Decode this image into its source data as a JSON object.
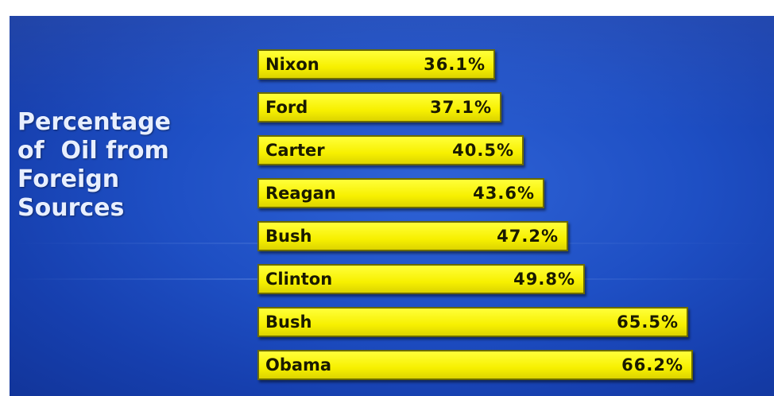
{
  "chart_data": {
    "type": "bar",
    "orientation": "horizontal",
    "title": [
      "Percentage",
      "of  Oil from",
      "Foreign",
      "Sources"
    ],
    "categories": [
      "Nixon",
      "Ford",
      "Carter",
      "Reagan",
      "Bush",
      "Clinton",
      "Bush",
      "Obama"
    ],
    "values": [
      36.1,
      37.1,
      40.5,
      43.6,
      47.2,
      49.8,
      65.5,
      66.2
    ],
    "value_labels": [
      "36.1%",
      "37.1%",
      "40.5%",
      "43.6%",
      "47.2%",
      "49.8%",
      "65.5%",
      "66.2%"
    ],
    "bar_color": "#f7f000",
    "background_color": "#1e4fc4",
    "title_color": "#e8efff"
  }
}
